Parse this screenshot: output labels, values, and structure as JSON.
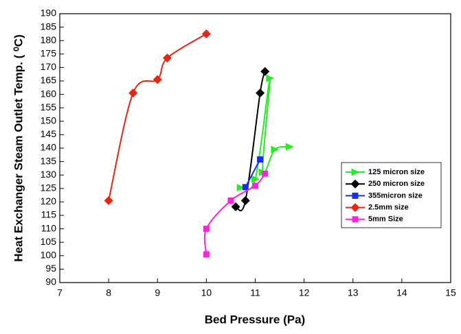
{
  "chart_data": {
    "type": "line",
    "xlabel": "Bed Pressure (Pa)",
    "ylabel": "Heat Exchanger Steam Outlet Temp. ( ⁰C)",
    "xlim": [
      7,
      15
    ],
    "xticks": [
      7,
      8,
      9,
      10,
      11,
      12,
      13,
      14,
      15
    ],
    "ylim": [
      90,
      190
    ],
    "yticks": [
      90,
      95,
      100,
      105,
      110,
      115,
      120,
      125,
      130,
      135,
      140,
      145,
      150,
      155,
      160,
      165,
      170,
      175,
      180,
      185,
      190
    ],
    "legend": "right",
    "series": [
      {
        "name": "125 micron size",
        "color": "#22ee22",
        "marker": "triangle",
        "x": [
          10.7,
          11.0,
          11.3,
          11.15,
          11.4,
          11.7
        ],
        "values": [
          125.3,
          128.5,
          166,
          131,
          139.5,
          140.5
        ]
      },
      {
        "name": "250 micron size",
        "color": "#000000",
        "marker": "diamond",
        "x": [
          10.6,
          10.8,
          11.1,
          11.2
        ],
        "values": [
          118.2,
          120.5,
          160.5,
          168.5
        ]
      },
      {
        "name": "355micron size",
        "color": "#1a2cf0",
        "marker": "square",
        "x": [
          10.8,
          11.1
        ],
        "values": [
          125.5,
          135.8
        ]
      },
      {
        "name": "2.5mm size",
        "color": "#ee2211",
        "marker": "diamond",
        "x": [
          8,
          8.5,
          9,
          9.2,
          10
        ],
        "values": [
          120.5,
          160.5,
          165.5,
          173.5,
          182.5
        ]
      },
      {
        "name": "5mm Size",
        "color": "#ff22dd",
        "marker": "square",
        "x": [
          10,
          10,
          10.5,
          11,
          11.2
        ],
        "values": [
          100.5,
          110,
          120.5,
          126,
          130.5
        ]
      }
    ]
  }
}
